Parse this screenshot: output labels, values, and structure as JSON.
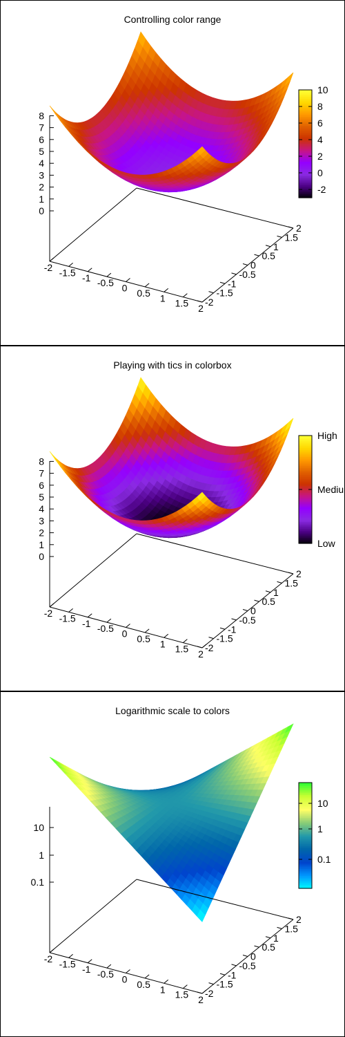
{
  "chart_data": [
    {
      "type": "surface3d",
      "title": "Controlling color range",
      "x_ticks": [
        "-2",
        "-1.5",
        "-1",
        "-0.5",
        "0",
        "0.5",
        "1",
        "1.5",
        "2"
      ],
      "y_ticks": [
        "-2",
        "-1.5",
        "-1",
        "-0.5",
        "0",
        "0.5",
        "1",
        "1.5",
        "2"
      ],
      "z_ticks": [
        "0",
        "1",
        "2",
        "3",
        "4",
        "5",
        "6",
        "7",
        "8"
      ],
      "xlim": [
        -2,
        2
      ],
      "ylim": [
        -2,
        2
      ],
      "zlim": [
        0,
        8
      ],
      "function": "x^2 + y^2",
      "cb_range": [
        -3,
        10
      ],
      "cb_ticks": [
        "10",
        "8",
        "6",
        "4",
        "2",
        "0",
        "-2"
      ],
      "palette": [
        "#000000",
        "#4b0082",
        "#8a2be2",
        "#9400ff",
        "#c71585",
        "#cc3300",
        "#e06000",
        "#ff9900",
        "#ffd700",
        "#ffff33"
      ]
    },
    {
      "type": "surface3d",
      "title": "Playing with tics in colorbox",
      "x_ticks": [
        "-2",
        "-1.5",
        "-1",
        "-0.5",
        "0",
        "0.5",
        "1",
        "1.5",
        "2"
      ],
      "y_ticks": [
        "-2",
        "-1.5",
        "-1",
        "-0.5",
        "0",
        "0.5",
        "1",
        "1.5",
        "2"
      ],
      "z_ticks": [
        "0",
        "1",
        "2",
        "3",
        "4",
        "5",
        "6",
        "7",
        "8"
      ],
      "xlim": [
        -2,
        2
      ],
      "ylim": [
        -2,
        2
      ],
      "zlim": [
        0,
        8
      ],
      "function": "x^2 + y^2",
      "cb_range": [
        0,
        8
      ],
      "cb_ticks": [
        "High",
        "Mediu",
        "Low"
      ],
      "palette": [
        "#000000",
        "#4b0082",
        "#8a2be2",
        "#9400ff",
        "#c71585",
        "#cc3300",
        "#e06000",
        "#ff9900",
        "#ffd700",
        "#ffff33"
      ]
    },
    {
      "type": "surface3d",
      "title": "Logarithmic scale to colors",
      "x_ticks": [
        "-2",
        "-1.5",
        "-1",
        "-0.5",
        "0",
        "0.5",
        "1",
        "1.5",
        "2"
      ],
      "y_ticks": [
        "-2",
        "-1.5",
        "-1",
        "-0.5",
        "0",
        "0.5",
        "1",
        "1.5",
        "2"
      ],
      "z_ticks": [
        "10",
        "1",
        "0.1"
      ],
      "xlim": [
        -2,
        2
      ],
      "ylim": [
        -2,
        2
      ],
      "zlim": [
        0.01,
        60
      ],
      "z_scale": "log",
      "function": "exp(x*y)",
      "cb_ticks": [
        "10",
        "1",
        "0.1"
      ],
      "palette": [
        "#00ffff",
        "#0099ff",
        "#0044cc",
        "#0066aa",
        "#2299aa",
        "#88cc77",
        "#ffff66",
        "#ccff33",
        "#33ff33"
      ]
    }
  ]
}
